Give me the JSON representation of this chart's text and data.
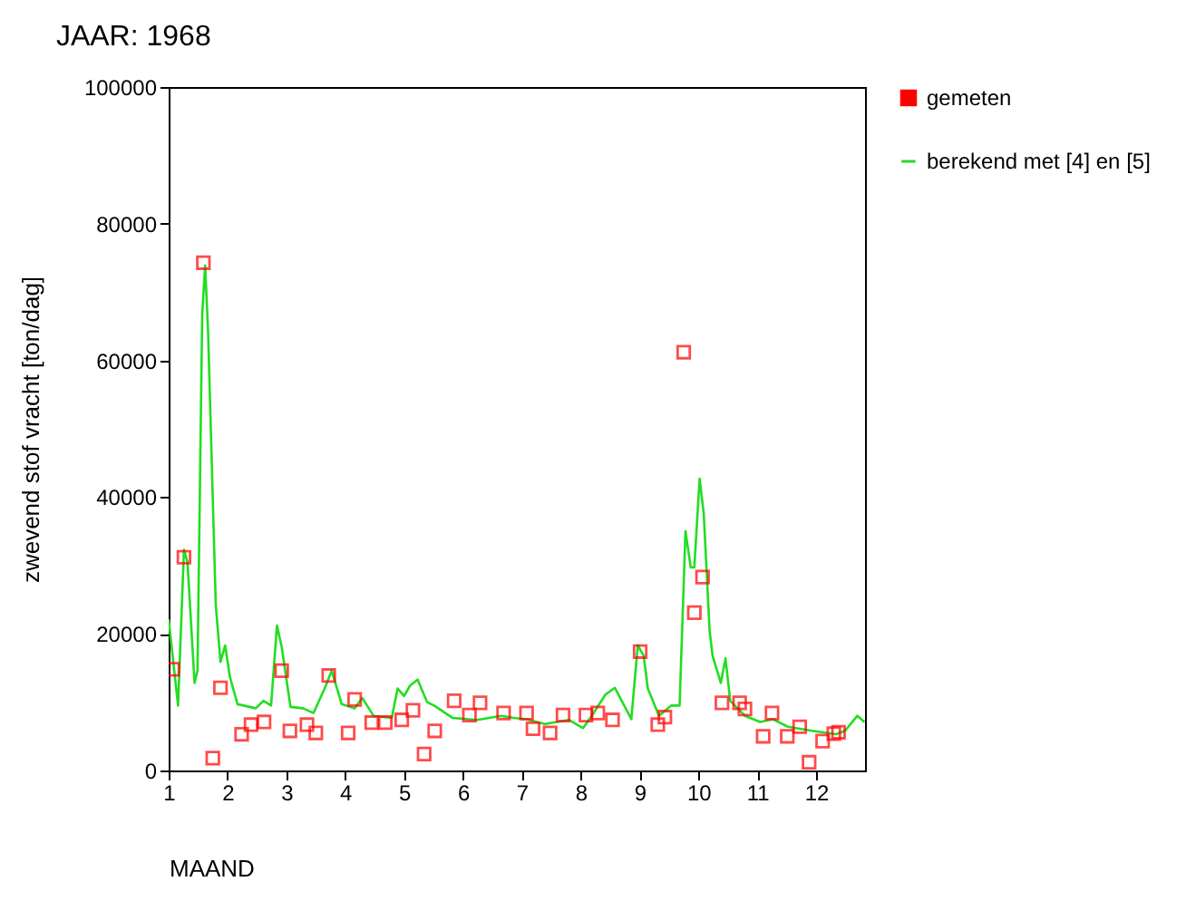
{
  "chart_data": {
    "type": "scatter",
    "title": "JAAR: 1968",
    "xlabel": "MAAND",
    "ylabel": "zwevend stof vracht [ton/dag]",
    "xlim": [
      1,
      12.83
    ],
    "xticks": [
      1,
      2,
      3,
      4,
      5,
      6,
      7,
      8,
      9,
      10,
      11,
      12
    ],
    "ylim": [
      0,
      100000
    ],
    "yticks": [
      0,
      20000,
      40000,
      60000,
      80000,
      100000
    ],
    "grid": false,
    "legend": "right",
    "series": [
      {
        "name": "gemeten",
        "marker": "square",
        "color": "#ff0000",
        "x": [
          1.07,
          1.26,
          1.59,
          1.75,
          1.88,
          2.24,
          2.4,
          2.62,
          2.92,
          3.06,
          3.35,
          3.5,
          3.72,
          4.05,
          4.16,
          4.45,
          4.68,
          4.96,
          5.15,
          5.34,
          5.52,
          5.85,
          6.11,
          6.29,
          6.69,
          7.08,
          7.19,
          7.48,
          7.7,
          8.09,
          8.29,
          8.54,
          9.01,
          9.31,
          9.43,
          9.75,
          9.93,
          10.07,
          10.4,
          10.7,
          10.79,
          11.1,
          11.25,
          11.51,
          11.72,
          11.88,
          12.11,
          12.3,
          12.38
        ],
        "values": [
          14800,
          31200,
          74300,
          1800,
          12100,
          5300,
          6700,
          7100,
          14600,
          5800,
          6700,
          5500,
          13900,
          5500,
          10400,
          7000,
          7000,
          7400,
          8800,
          2400,
          5800,
          10200,
          8100,
          9900,
          8400,
          8400,
          6100,
          5500,
          8100,
          8100,
          8400,
          7400,
          17400,
          6700,
          7800,
          61200,
          23100,
          28300,
          9900,
          9900,
          9000,
          5000,
          8400,
          5000,
          6400,
          1200,
          4300,
          5400,
          5600
        ]
      },
      {
        "name": "berekend met [4] en [5]",
        "type": "line",
        "marker": "none",
        "color": "#22dd22",
        "x": [
          1.0,
          1.16,
          1.26,
          1.32,
          1.44,
          1.49,
          1.57,
          1.62,
          1.67,
          1.8,
          1.88,
          1.96,
          2.04,
          2.17,
          2.48,
          2.61,
          2.74,
          2.84,
          2.92,
          3.07,
          3.28,
          3.46,
          3.65,
          3.77,
          3.94,
          4.16,
          4.29,
          4.48,
          4.79,
          4.89,
          5.0,
          5.1,
          5.23,
          5.39,
          5.51,
          5.82,
          6.24,
          6.65,
          6.86,
          7.08,
          7.39,
          7.8,
          8.04,
          8.22,
          8.42,
          8.58,
          8.86,
          8.97,
          9.07,
          9.14,
          9.33,
          9.54,
          9.68,
          9.78,
          9.87,
          9.93,
          10.02,
          10.09,
          10.19,
          10.24,
          10.38,
          10.46,
          10.54,
          10.79,
          11.05,
          11.26,
          11.52,
          11.93,
          12.34,
          12.49,
          12.7,
          12.82
        ],
        "values": [
          22100,
          9500,
          32300,
          30500,
          12800,
          14600,
          66800,
          73900,
          64200,
          24300,
          15900,
          18300,
          13700,
          9700,
          9100,
          10200,
          9500,
          21200,
          18100,
          9300,
          9100,
          8400,
          12000,
          14600,
          9700,
          9100,
          10600,
          8000,
          7700,
          12000,
          10900,
          12400,
          13300,
          10000,
          9500,
          7700,
          7400,
          8000,
          7700,
          7500,
          6800,
          7400,
          6200,
          8400,
          11100,
          12100,
          7500,
          18300,
          16800,
          12000,
          8000,
          9500,
          9500,
          35000,
          29700,
          29700,
          42700,
          37600,
          20400,
          16800,
          12800,
          16400,
          10200,
          8000,
          7100,
          7500,
          6400,
          5800,
          5300,
          5800,
          8000,
          7100
        ]
      }
    ]
  }
}
